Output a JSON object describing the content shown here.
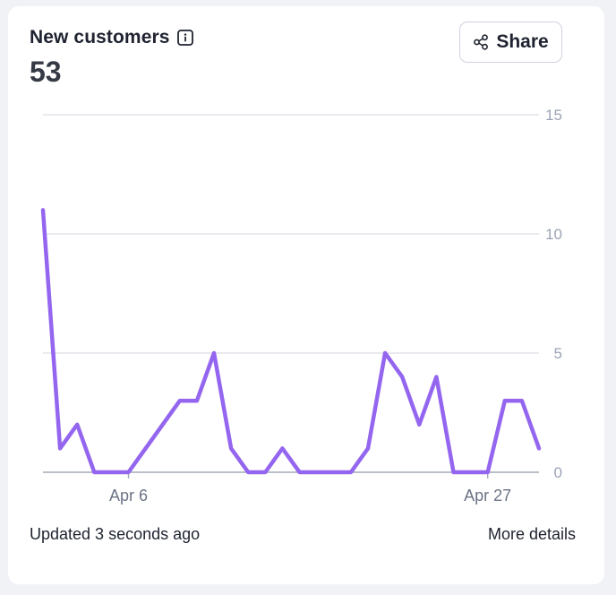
{
  "card": {
    "title": "New customers",
    "metric": "53",
    "share_label": "Share",
    "updated_text": "Updated 3 seconds ago",
    "more_details_label": "More details"
  },
  "colors": {
    "line": "#9466f0",
    "grid": "#d9dde4",
    "axis": "#a3aab8",
    "tick": "#9aa3b5",
    "xtick": "#6b7385"
  },
  "icons": {
    "info": "info-icon",
    "share": "share-icon"
  },
  "chart_data": {
    "type": "line",
    "title": "",
    "xlabel": "",
    "ylabel": "",
    "ylim": [
      0,
      15
    ],
    "yticks": [
      0,
      5,
      10,
      15
    ],
    "xtick_labels": [
      {
        "label": "Apr 6",
        "index": 5
      },
      {
        "label": "Apr 27",
        "index": 26
      }
    ],
    "grid": true,
    "y_axis_side": "right",
    "series": [
      {
        "values": [
          11,
          1,
          2,
          0,
          0,
          0,
          1,
          2,
          3,
          3,
          5,
          1,
          0,
          0,
          1,
          0,
          0,
          0,
          0,
          1,
          5,
          4,
          2,
          4,
          0,
          0,
          0,
          3,
          3,
          1
        ]
      }
    ]
  }
}
